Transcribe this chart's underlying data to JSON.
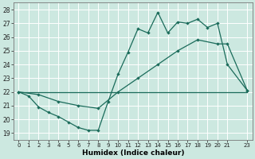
{
  "xlabel": "Humidex (Indice chaleur)",
  "bg_color": "#cce8e0",
  "grid_color": "#ffffff",
  "line_color": "#1a6b5a",
  "xlim": [
    -0.5,
    23.5
  ],
  "ylim": [
    18.5,
    28.5
  ],
  "xticks": [
    0,
    1,
    2,
    3,
    4,
    5,
    6,
    7,
    8,
    9,
    10,
    11,
    12,
    13,
    14,
    15,
    16,
    17,
    18,
    19,
    20,
    21,
    23
  ],
  "yticks": [
    19,
    20,
    21,
    22,
    23,
    24,
    25,
    26,
    27,
    28
  ],
  "line1_x": [
    0,
    1,
    2,
    3,
    4,
    5,
    6,
    7,
    8,
    9,
    10,
    11,
    12,
    13,
    14,
    15,
    16,
    17,
    18,
    19,
    20,
    21,
    23
  ],
  "line1_y": [
    22.0,
    21.7,
    20.9,
    20.5,
    20.2,
    19.8,
    19.4,
    19.2,
    19.2,
    21.3,
    23.3,
    24.9,
    26.6,
    26.3,
    27.8,
    26.3,
    27.1,
    27.0,
    27.3,
    26.7,
    27.0,
    24.0,
    22.1
  ],
  "line2_x": [
    0,
    2,
    4,
    6,
    8,
    10,
    12,
    14,
    16,
    18,
    20,
    21,
    23
  ],
  "line2_y": [
    22.0,
    21.8,
    21.3,
    21.0,
    20.8,
    22.0,
    23.0,
    24.0,
    25.0,
    25.8,
    25.5,
    25.5,
    22.1
  ],
  "line3_x": [
    0,
    23
  ],
  "line3_y": [
    22.0,
    22.0
  ]
}
